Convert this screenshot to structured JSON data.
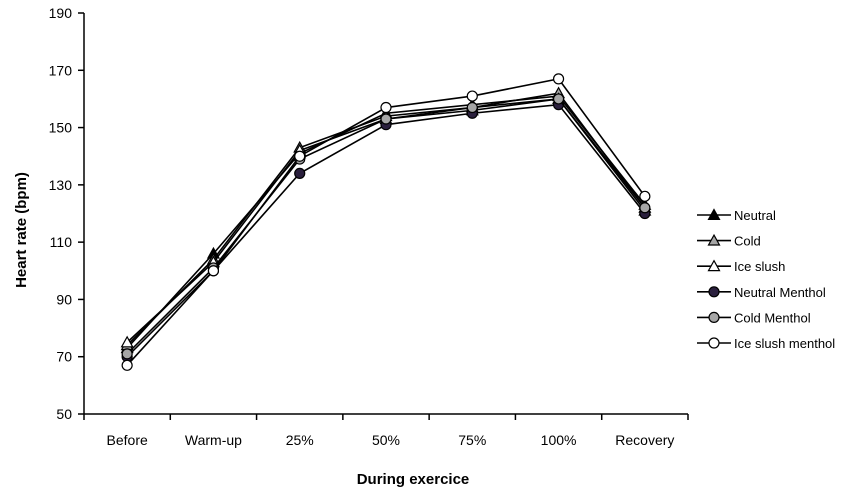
{
  "chart_data": {
    "type": "line",
    "title": "",
    "xlabel": "During exercice",
    "ylabel": "Heart rate (bpm)",
    "categories": [
      "Before",
      "Warm-up",
      "25%",
      "50%",
      "75%",
      "100%",
      "Recovery"
    ],
    "ylim": [
      50,
      190
    ],
    "yticks": [
      50,
      70,
      90,
      110,
      130,
      150,
      170,
      190
    ],
    "grid": false,
    "legend_position": "right",
    "series": [
      {
        "name": "Neutral",
        "marker": "triangle",
        "fill": "#000000",
        "values": [
          73,
          106,
          141,
          155,
          158,
          161,
          123
        ]
      },
      {
        "name": "Cold",
        "marker": "triangle",
        "fill": "#a6a6a6",
        "values": [
          74,
          104,
          143,
          154,
          157,
          162,
          122
        ]
      },
      {
        "name": "Ice slush",
        "marker": "triangle",
        "fill": "#ffffff",
        "values": [
          75,
          103,
          142,
          153,
          156,
          160,
          121
        ]
      },
      {
        "name": "Neutral Menthol",
        "marker": "circle",
        "fill": "#2a1f3d",
        "values": [
          70,
          100,
          134,
          151,
          155,
          158,
          120
        ]
      },
      {
        "name": "Cold Menthol",
        "marker": "circle",
        "fill": "#a6a6a6",
        "values": [
          71,
          101,
          139,
          153,
          157,
          160,
          122
        ]
      },
      {
        "name": "Ice slush menthol",
        "marker": "circle",
        "fill": "#ffffff",
        "values": [
          67,
          100,
          140,
          157,
          161,
          167,
          126
        ]
      }
    ]
  }
}
